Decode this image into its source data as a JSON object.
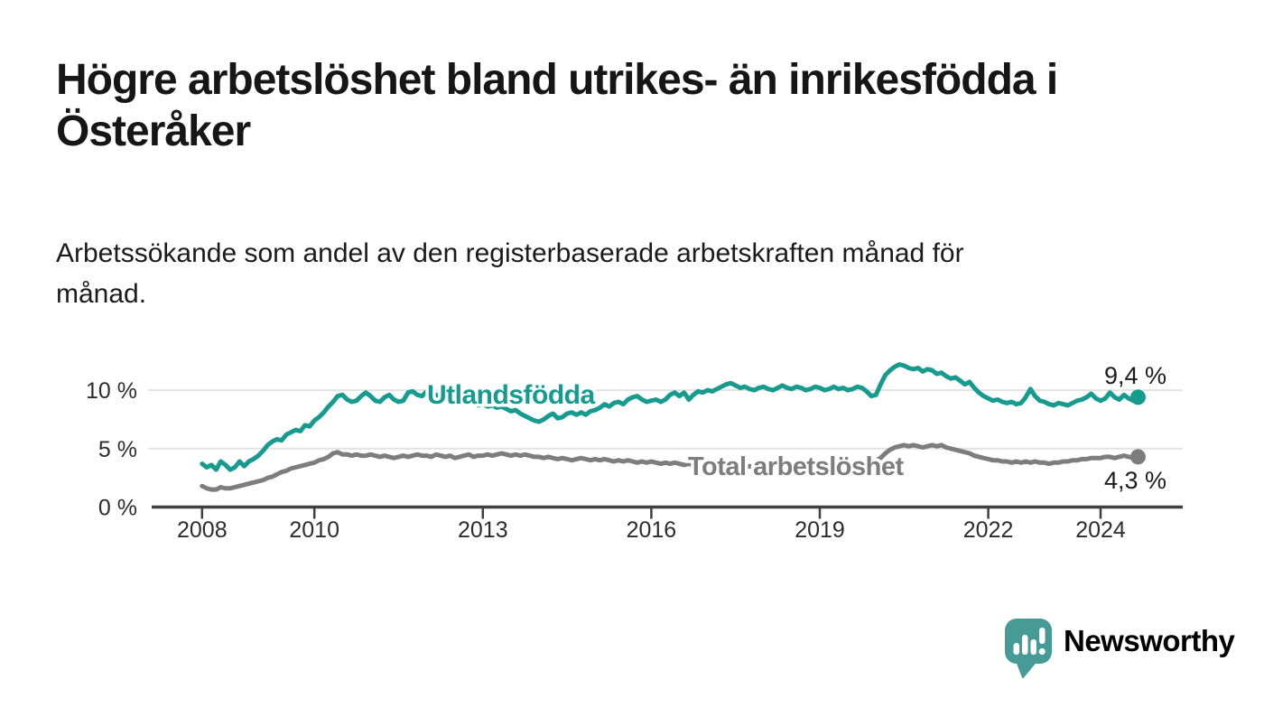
{
  "header": {
    "title_lines": [
      "Högre arbetslöshet bland utrikes- än inrikesfödda i",
      "Österåker"
    ],
    "subtitle_lines": [
      "Arbetssökande som andel av den registerbaserade arbetskraften månad för",
      "månad."
    ]
  },
  "chart_data": {
    "type": "line",
    "unit": "%",
    "x_axis": {
      "ticks": [
        2008,
        2010,
        2013,
        2016,
        2019,
        2022,
        2024
      ],
      "range_years": [
        2007.2,
        2025.5
      ]
    },
    "y_axis": {
      "ticks": [
        0,
        5,
        10
      ],
      "tick_labels": [
        "0 %",
        "5 %",
        "10 %"
      ],
      "gridlines": [
        5,
        10
      ],
      "range": [
        0,
        13
      ]
    },
    "series": [
      {
        "name": "Utlandsfödda",
        "color": "#169b8e",
        "start_year": 2008,
        "frequency": "monthly",
        "end_value_label": "9,4 %",
        "end_value": 9.4,
        "values": [
          3.7,
          3.4,
          3.6,
          3.2,
          3.9,
          3.6,
          3.2,
          3.4,
          3.9,
          3.5,
          3.9,
          4.1,
          4.4,
          4.8,
          5.3,
          5.6,
          5.8,
          5.7,
          6.2,
          6.4,
          6.6,
          6.5,
          7.0,
          6.9,
          7.4,
          7.7,
          8.1,
          8.6,
          9.0,
          9.5,
          9.6,
          9.2,
          9.0,
          9.1,
          9.5,
          9.8,
          9.5,
          9.1,
          9.0,
          9.4,
          9.6,
          9.2,
          9.0,
          9.1,
          9.8,
          9.9,
          9.6,
          9.5,
          9.9,
          9.8,
          9.6,
          9.4,
          9.5,
          9.3,
          9.1,
          9.2,
          9.0,
          8.8,
          8.9,
          8.7,
          8.8,
          8.6,
          8.7,
          8.5,
          8.6,
          8.4,
          8.2,
          8.3,
          8.0,
          7.8,
          7.6,
          7.4,
          7.3,
          7.5,
          7.8,
          8.0,
          7.6,
          7.7,
          8.0,
          8.1,
          7.9,
          8.1,
          7.9,
          8.2,
          8.3,
          8.5,
          8.8,
          8.6,
          8.9,
          9.0,
          8.8,
          9.2,
          9.4,
          9.5,
          9.2,
          9.0,
          9.1,
          9.2,
          9.0,
          9.2,
          9.6,
          9.8,
          9.5,
          9.8,
          9.2,
          9.6,
          9.9,
          9.8,
          10.0,
          9.9,
          10.1,
          10.3,
          10.5,
          10.6,
          10.4,
          10.2,
          10.3,
          10.1,
          10.0,
          10.2,
          10.3,
          10.1,
          10.0,
          10.2,
          10.4,
          10.2,
          10.1,
          10.3,
          10.2,
          10.0,
          10.1,
          10.3,
          10.2,
          10.0,
          10.1,
          10.3,
          10.1,
          10.2,
          10.0,
          10.1,
          10.3,
          10.2,
          9.9,
          9.5,
          9.6,
          10.5,
          11.3,
          11.7,
          12.0,
          12.2,
          12.1,
          11.9,
          11.8,
          11.9,
          11.6,
          11.8,
          11.7,
          11.4,
          11.5,
          11.2,
          11.0,
          11.1,
          10.8,
          10.5,
          10.7,
          10.2,
          9.8,
          9.5,
          9.3,
          9.1,
          9.2,
          9.0,
          8.9,
          9.0,
          8.8,
          8.9,
          9.4,
          10.1,
          9.5,
          9.1,
          9.0,
          8.8,
          8.7,
          8.9,
          8.8,
          8.7,
          8.9,
          9.1,
          9.2,
          9.4,
          9.7,
          9.3,
          9.1,
          9.3,
          9.8,
          9.4,
          9.2,
          9.6,
          9.3,
          9.1,
          9.4
        ]
      },
      {
        "name": "Total arbetslöshet",
        "color": "#7d7d7d",
        "start_year": 2008,
        "frequency": "monthly",
        "end_value_label": "4,3 %",
        "end_value": 4.3,
        "values": [
          1.8,
          1.6,
          1.5,
          1.5,
          1.7,
          1.6,
          1.6,
          1.7,
          1.8,
          1.9,
          2.0,
          2.1,
          2.2,
          2.3,
          2.5,
          2.6,
          2.8,
          3.0,
          3.1,
          3.3,
          3.4,
          3.5,
          3.6,
          3.7,
          3.8,
          4.0,
          4.1,
          4.3,
          4.6,
          4.7,
          4.5,
          4.5,
          4.4,
          4.5,
          4.4,
          4.4,
          4.5,
          4.4,
          4.3,
          4.4,
          4.3,
          4.2,
          4.3,
          4.4,
          4.3,
          4.4,
          4.5,
          4.4,
          4.4,
          4.3,
          4.5,
          4.4,
          4.3,
          4.4,
          4.2,
          4.3,
          4.4,
          4.5,
          4.3,
          4.4,
          4.4,
          4.5,
          4.4,
          4.5,
          4.6,
          4.5,
          4.4,
          4.5,
          4.4,
          4.5,
          4.4,
          4.3,
          4.3,
          4.2,
          4.3,
          4.2,
          4.1,
          4.2,
          4.1,
          4.0,
          4.1,
          4.2,
          4.1,
          4.0,
          4.1,
          4.0,
          4.1,
          4.0,
          3.9,
          4.0,
          3.9,
          4.0,
          3.9,
          3.8,
          3.9,
          3.8,
          3.9,
          3.8,
          3.7,
          3.8,
          3.7,
          3.8,
          3.7,
          3.6,
          3.7,
          3.6,
          3.7,
          3.6,
          3.6,
          3.5,
          3.6,
          3.5,
          3.4,
          3.5,
          3.4,
          3.5,
          3.4,
          3.5,
          3.4,
          3.5,
          3.4,
          3.5,
          3.4,
          3.3,
          3.4,
          3.3,
          3.4,
          3.3,
          3.4,
          3.3,
          3.4,
          3.5,
          3.4,
          3.5,
          3.4,
          3.5,
          3.6,
          3.5,
          3.6,
          3.5,
          3.6,
          3.7,
          3.8,
          3.9,
          4.0,
          4.2,
          4.6,
          4.9,
          5.1,
          5.2,
          5.3,
          5.2,
          5.3,
          5.2,
          5.1,
          5.2,
          5.3,
          5.2,
          5.3,
          5.1,
          5.0,
          4.9,
          4.8,
          4.7,
          4.6,
          4.4,
          4.3,
          4.2,
          4.1,
          4.0,
          4.0,
          3.9,
          3.9,
          3.8,
          3.9,
          3.8,
          3.9,
          3.8,
          3.9,
          3.8,
          3.8,
          3.7,
          3.8,
          3.8,
          3.9,
          3.9,
          4.0,
          4.0,
          4.1,
          4.1,
          4.2,
          4.2,
          4.2,
          4.3,
          4.3,
          4.2,
          4.3,
          4.4,
          4.3,
          4.2,
          4.3
        ]
      }
    ]
  },
  "footer": {
    "brand": "Newsworthy",
    "brand_color": "#3e9d97",
    "logo_color": "#479b96"
  },
  "colors": {
    "series_teal": "#169b8e",
    "series_gray": "#7d7d7d",
    "axis": "#3f3f3f",
    "gridline": "#e3e3e3",
    "text_dark": "#161616"
  }
}
